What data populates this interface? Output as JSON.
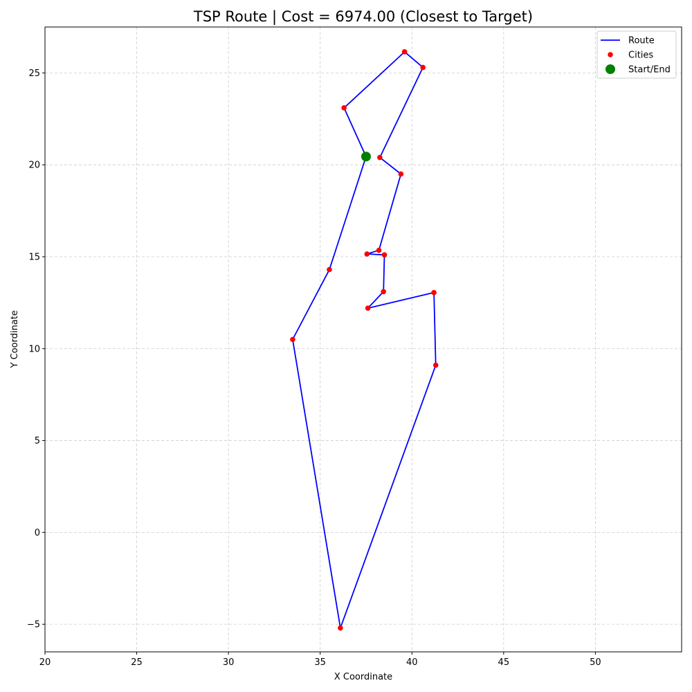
{
  "chart_data": {
    "type": "line",
    "title": "TSP Route | Cost = 6974.00 (Closest to Target)",
    "xlabel": "X Coordinate",
    "ylabel": "Y Coordinate",
    "xlim": [
      20,
      54.7
    ],
    "ylim": [
      -6.5,
      27.5
    ],
    "xticks": [
      20,
      25,
      30,
      35,
      40,
      45,
      50
    ],
    "yticks": [
      -5,
      0,
      5,
      10,
      15,
      20,
      25
    ],
    "grid": true,
    "legend_position": "top-right",
    "legend": [
      {
        "label": "Route",
        "kind": "line",
        "color": "#0000ff"
      },
      {
        "label": "Cities",
        "kind": "marker",
        "color": "#ff0000"
      },
      {
        "label": "Start/End",
        "kind": "marker-large",
        "color": "#008000"
      }
    ],
    "route": [
      [
        37.5,
        20.45
      ],
      [
        36.3,
        23.1
      ],
      [
        39.6,
        26.15
      ],
      [
        40.6,
        25.3
      ],
      [
        38.25,
        20.4
      ],
      [
        39.4,
        19.5
      ],
      [
        38.2,
        15.35
      ],
      [
        37.55,
        15.15
      ],
      [
        38.5,
        15.1
      ],
      [
        38.45,
        13.1
      ],
      [
        37.6,
        12.2
      ],
      [
        41.2,
        13.05
      ],
      [
        41.3,
        9.1
      ],
      [
        36.1,
        -5.2
      ],
      [
        33.5,
        10.5
      ],
      [
        35.5,
        14.3
      ],
      [
        37.5,
        20.45
      ]
    ],
    "start": [
      37.5,
      20.45
    ],
    "colors": {
      "route": "#0000ff",
      "cities": "#ff0000",
      "start": "#008000"
    }
  }
}
